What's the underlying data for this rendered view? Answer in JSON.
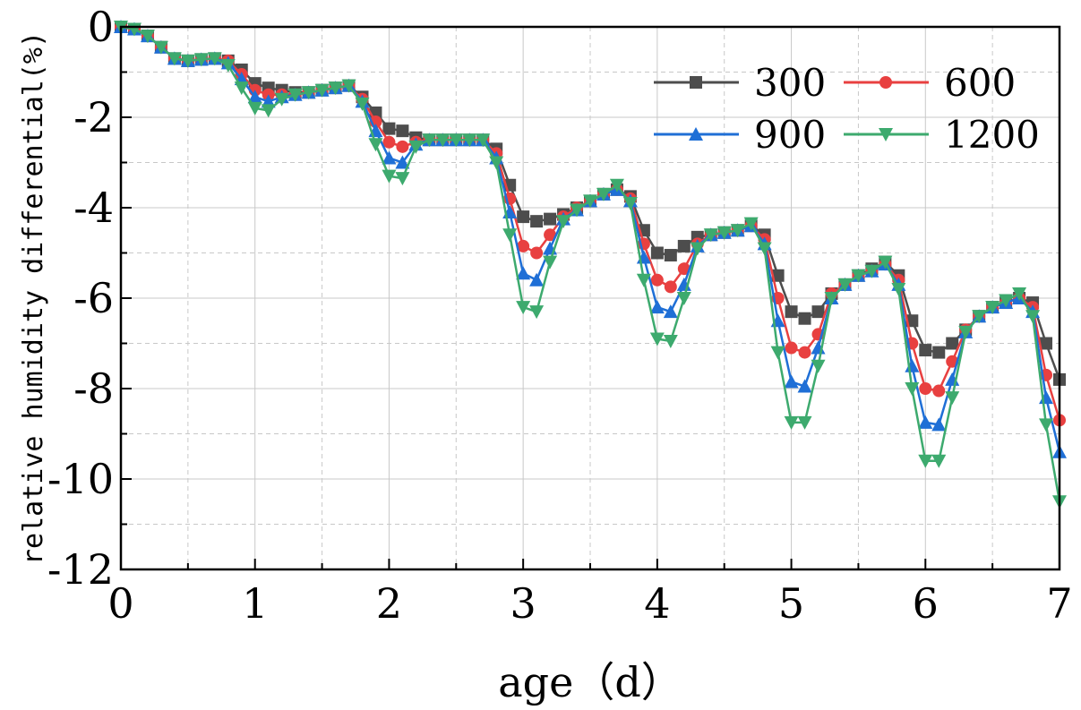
{
  "chart_data": {
    "type": "line",
    "title": "",
    "xlabel": "age（d）",
    "ylabel": "relative humidity differential(%)",
    "xlim": [
      0,
      7
    ],
    "ylim": [
      -12,
      0
    ],
    "xticks": [
      0,
      1,
      2,
      3,
      4,
      5,
      6,
      7
    ],
    "yticks": [
      0,
      -2,
      -4,
      -6,
      -8,
      -10,
      -12
    ],
    "xtick_labels": [
      "0",
      "1",
      "2",
      "3",
      "4",
      "5",
      "6",
      "7"
    ],
    "ytick_labels": [
      "0",
      "-2",
      "-4",
      "-6",
      "-8",
      "-10",
      "-12"
    ],
    "grid": true,
    "legend_position": "top-right",
    "x": [
      0,
      0.1,
      0.2,
      0.3,
      0.4,
      0.5,
      0.6,
      0.7,
      0.8,
      0.9,
      1.0,
      1.1,
      1.2,
      1.3,
      1.4,
      1.5,
      1.6,
      1.7,
      1.8,
      1.9,
      2.0,
      2.1,
      2.2,
      2.3,
      2.4,
      2.5,
      2.6,
      2.7,
      2.8,
      2.9,
      3.0,
      3.1,
      3.2,
      3.3,
      3.4,
      3.5,
      3.6,
      3.7,
      3.8,
      3.9,
      4.0,
      4.1,
      4.2,
      4.3,
      4.4,
      4.5,
      4.6,
      4.7,
      4.8,
      4.9,
      5.0,
      5.1,
      5.2,
      5.3,
      5.4,
      5.5,
      5.6,
      5.7,
      5.8,
      5.9,
      6.0,
      6.1,
      6.2,
      6.3,
      6.4,
      6.5,
      6.6,
      6.7,
      6.8,
      6.9,
      7.0
    ],
    "series": [
      {
        "name": "300",
        "color": "#4d4d4d",
        "marker": "square",
        "values": [
          0,
          -0.05,
          -0.2,
          -0.45,
          -0.7,
          -0.75,
          -0.72,
          -0.7,
          -0.75,
          -0.95,
          -1.25,
          -1.35,
          -1.4,
          -1.45,
          -1.45,
          -1.4,
          -1.35,
          -1.3,
          -1.55,
          -1.9,
          -2.25,
          -2.3,
          -2.45,
          -2.5,
          -2.5,
          -2.5,
          -2.5,
          -2.5,
          -2.7,
          -3.5,
          -4.2,
          -4.3,
          -4.25,
          -4.15,
          -4.0,
          -3.85,
          -3.7,
          -3.6,
          -3.75,
          -4.5,
          -5.0,
          -5.05,
          -4.85,
          -4.65,
          -4.6,
          -4.55,
          -4.5,
          -4.4,
          -4.6,
          -5.5,
          -6.3,
          -6.45,
          -6.3,
          -5.9,
          -5.7,
          -5.5,
          -5.35,
          -5.2,
          -5.5,
          -6.5,
          -7.15,
          -7.2,
          -7.0,
          -6.7,
          -6.4,
          -6.2,
          -6.1,
          -6.0,
          -6.1,
          -7.0,
          -7.8
        ]
      },
      {
        "name": "600",
        "color": "#e84040",
        "marker": "circle",
        "values": [
          0,
          -0.05,
          -0.2,
          -0.45,
          -0.7,
          -0.75,
          -0.72,
          -0.7,
          -0.75,
          -1.05,
          -1.4,
          -1.5,
          -1.5,
          -1.5,
          -1.45,
          -1.4,
          -1.35,
          -1.3,
          -1.6,
          -2.1,
          -2.55,
          -2.65,
          -2.55,
          -2.5,
          -2.5,
          -2.5,
          -2.5,
          -2.5,
          -2.8,
          -3.8,
          -4.85,
          -5.0,
          -4.6,
          -4.2,
          -4.0,
          -3.85,
          -3.7,
          -3.6,
          -3.8,
          -4.8,
          -5.6,
          -5.75,
          -5.35,
          -4.8,
          -4.6,
          -4.55,
          -4.5,
          -4.4,
          -4.7,
          -6.0,
          -7.1,
          -7.2,
          -6.8,
          -5.9,
          -5.7,
          -5.5,
          -5.4,
          -5.25,
          -5.6,
          -7.0,
          -8.0,
          -8.05,
          -7.4,
          -6.7,
          -6.4,
          -6.2,
          -6.1,
          -6.0,
          -6.2,
          -7.7,
          -8.7
        ]
      },
      {
        "name": "900",
        "color": "#1f6fd6",
        "marker": "triangle-up",
        "values": [
          0,
          -0.05,
          -0.2,
          -0.45,
          -0.7,
          -0.75,
          -0.72,
          -0.7,
          -0.8,
          -1.15,
          -1.55,
          -1.65,
          -1.55,
          -1.5,
          -1.45,
          -1.4,
          -1.35,
          -1.3,
          -1.65,
          -2.3,
          -2.9,
          -3.0,
          -2.6,
          -2.5,
          -2.5,
          -2.5,
          -2.5,
          -2.5,
          -2.9,
          -4.1,
          -5.45,
          -5.6,
          -4.9,
          -4.25,
          -4.05,
          -3.85,
          -3.7,
          -3.6,
          -3.85,
          -5.1,
          -6.2,
          -6.3,
          -5.7,
          -4.85,
          -4.6,
          -4.55,
          -4.5,
          -4.4,
          -4.8,
          -6.5,
          -7.85,
          -7.95,
          -7.1,
          -6.0,
          -5.7,
          -5.5,
          -5.4,
          -5.25,
          -5.7,
          -7.5,
          -8.75,
          -8.8,
          -7.8,
          -6.75,
          -6.4,
          -6.2,
          -6.1,
          -6.0,
          -6.3,
          -8.2,
          -9.4
        ]
      },
      {
        "name": "1200",
        "color": "#3daa6e",
        "marker": "triangle-down",
        "values": [
          0,
          -0.05,
          -0.2,
          -0.45,
          -0.7,
          -0.75,
          -0.72,
          -0.7,
          -0.85,
          -1.35,
          -1.8,
          -1.85,
          -1.6,
          -1.5,
          -1.45,
          -1.4,
          -1.35,
          -1.3,
          -1.7,
          -2.6,
          -3.3,
          -3.35,
          -2.65,
          -2.5,
          -2.5,
          -2.5,
          -2.5,
          -2.5,
          -3.0,
          -4.6,
          -6.2,
          -6.3,
          -5.2,
          -4.3,
          -4.05,
          -3.85,
          -3.7,
          -3.5,
          -3.9,
          -5.6,
          -6.9,
          -6.95,
          -6.0,
          -4.9,
          -4.6,
          -4.55,
          -4.5,
          -4.35,
          -4.9,
          -7.2,
          -8.75,
          -8.75,
          -7.5,
          -6.0,
          -5.7,
          -5.5,
          -5.4,
          -5.2,
          -5.8,
          -8.0,
          -9.6,
          -9.6,
          -8.2,
          -6.75,
          -6.4,
          -6.2,
          -6.05,
          -5.9,
          -6.4,
          -8.8,
          -10.5
        ]
      }
    ]
  }
}
